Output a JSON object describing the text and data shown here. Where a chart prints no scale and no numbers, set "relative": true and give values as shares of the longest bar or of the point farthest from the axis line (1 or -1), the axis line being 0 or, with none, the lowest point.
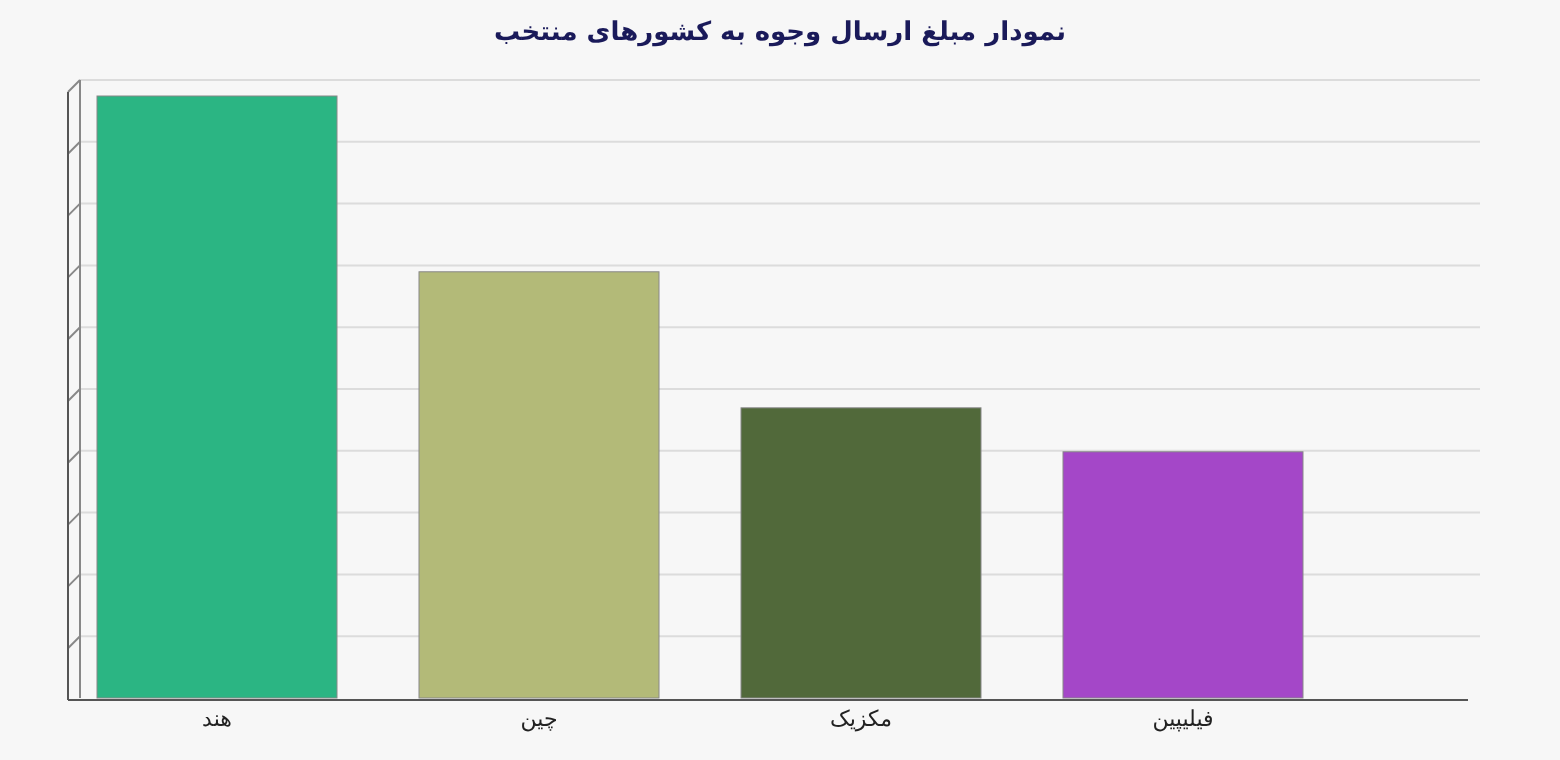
{
  "chart_data": {
    "type": "bar",
    "title": "نمودار مبلغ ارسال وجوه به کشورهای منتخب",
    "categories": [
      "هند",
      "چین",
      "مکزیک",
      "فیلیپین"
    ],
    "values": [
      1,
      0.708,
      0.482,
      0.409
    ],
    "colors": [
      "#2bb583",
      "#b3ba78",
      "#51693a",
      "#a447c8"
    ],
    "relative": true,
    "grid": "y"
  }
}
